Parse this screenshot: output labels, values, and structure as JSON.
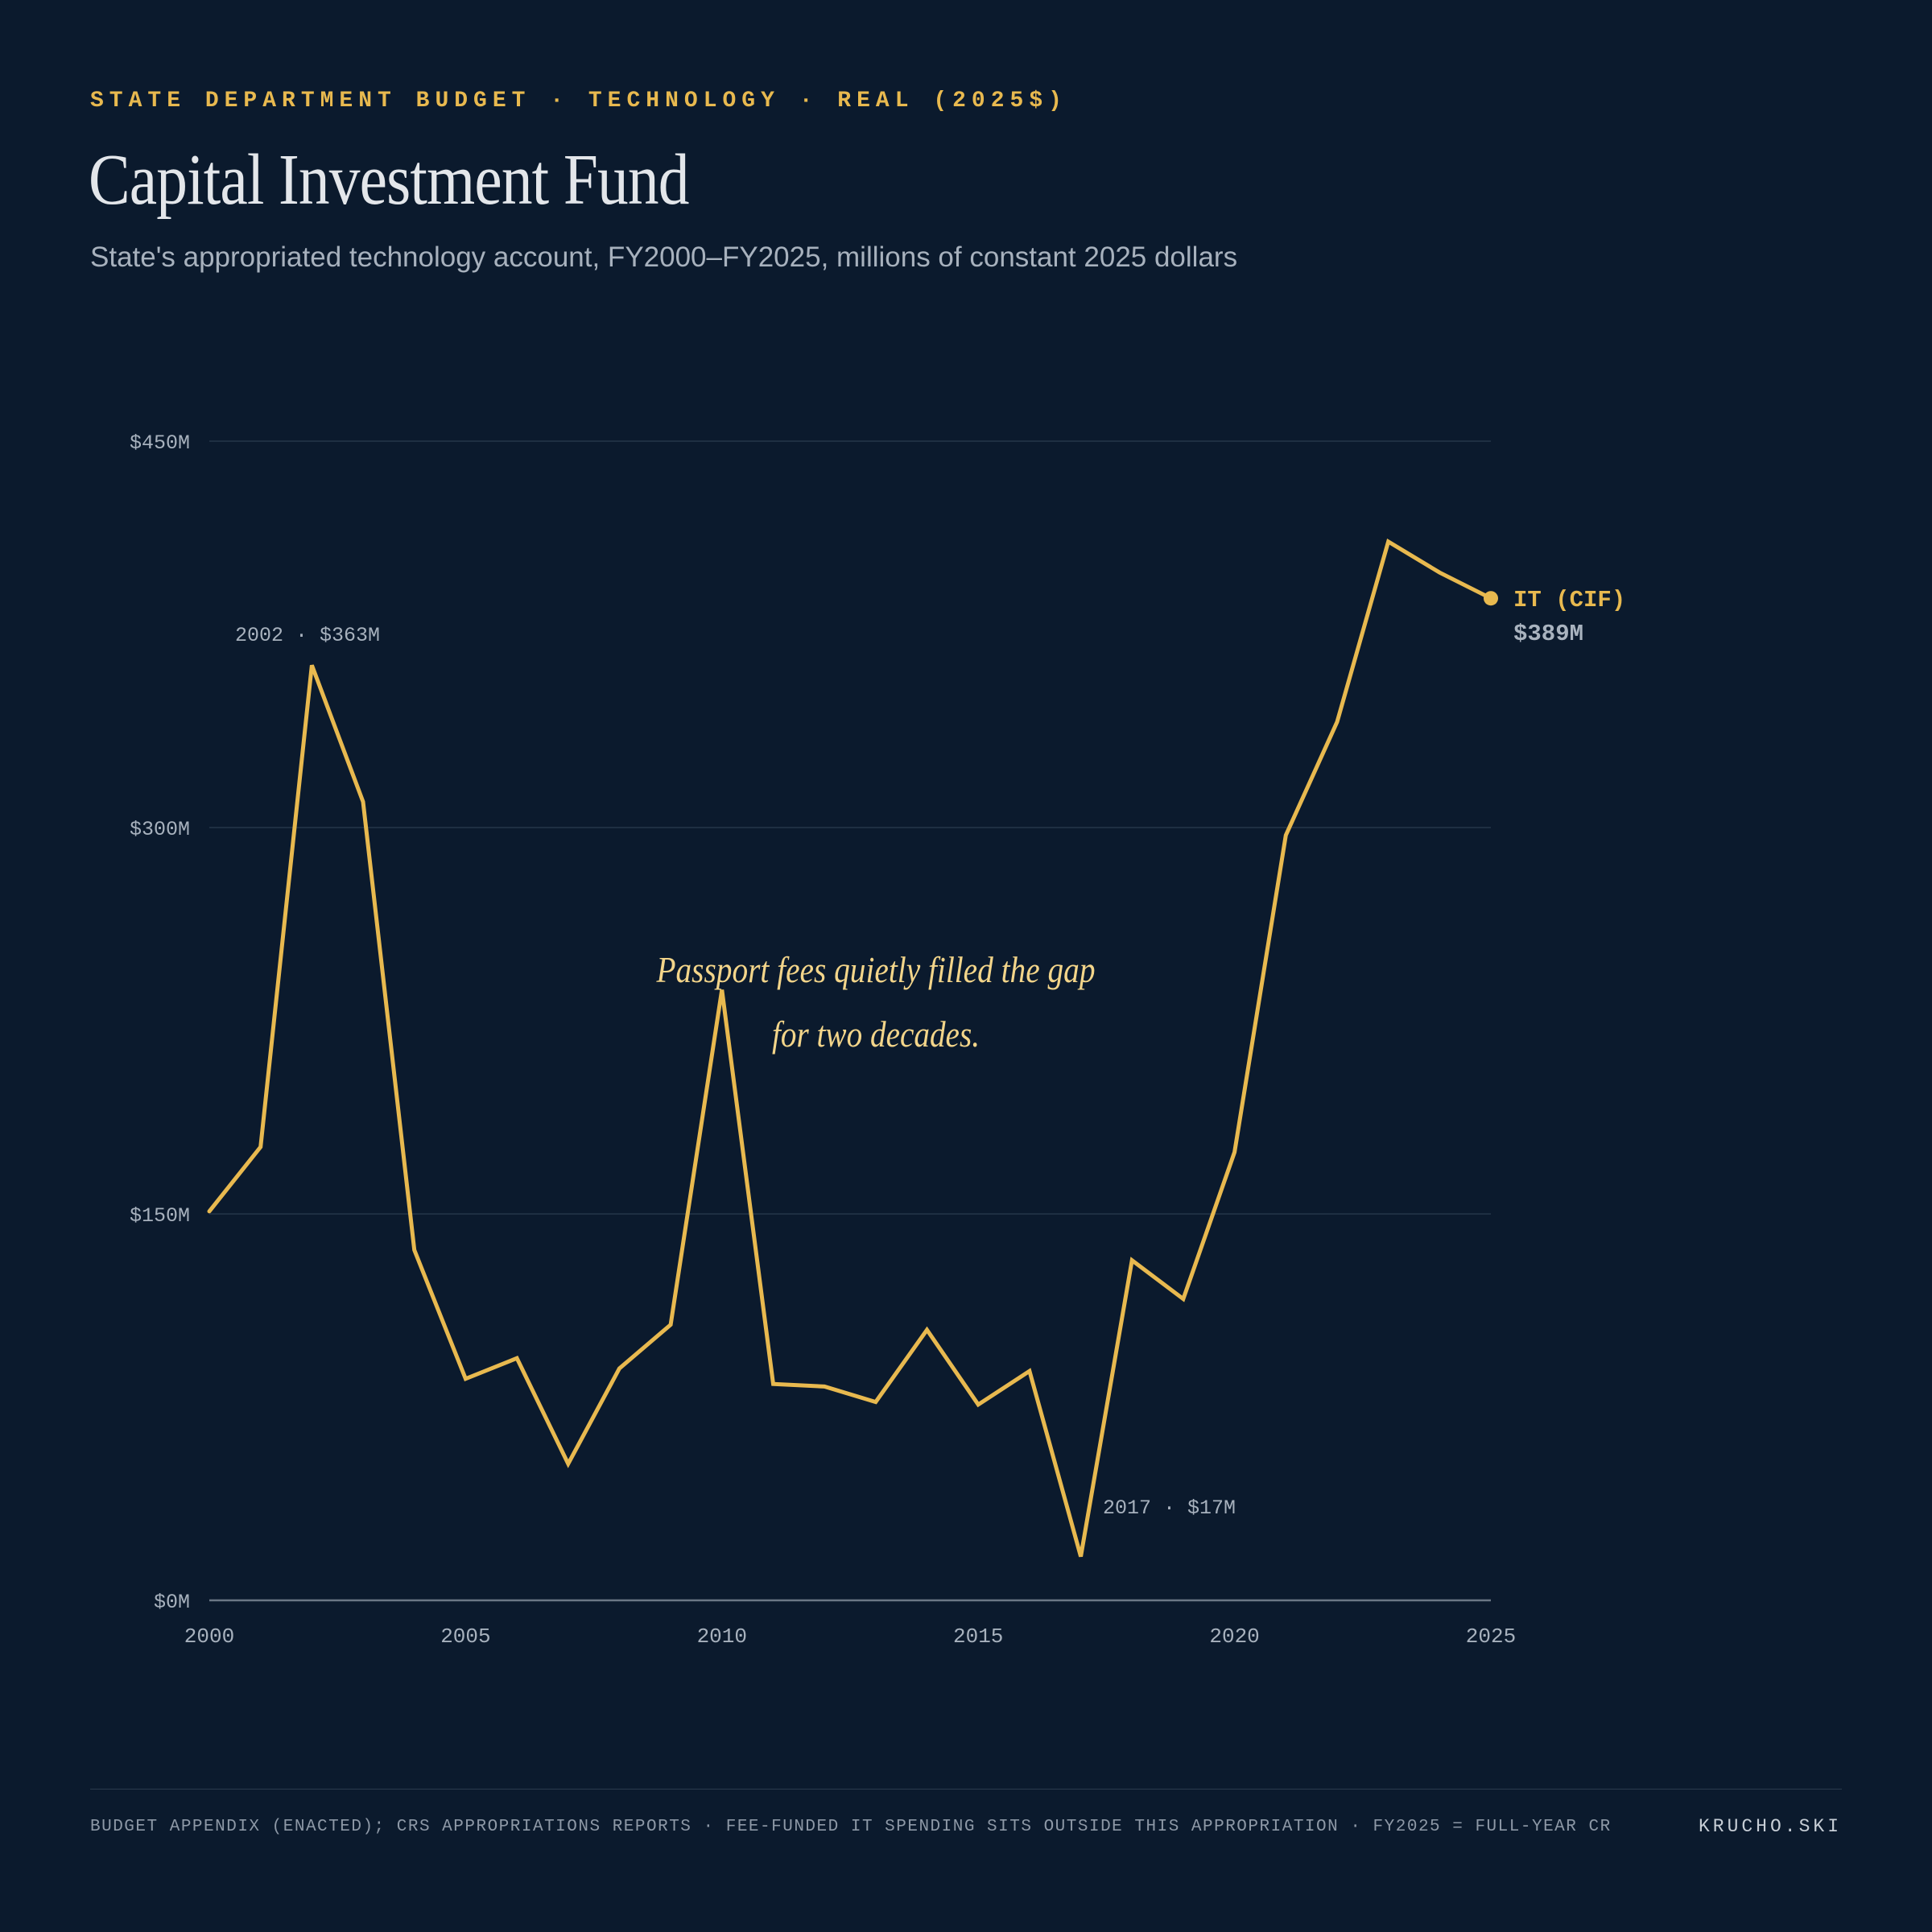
{
  "header": {
    "kicker": "STATE DEPARTMENT BUDGET · TECHNOLOGY · REAL (2025$)",
    "title": "Capital Investment Fund",
    "subtitle": "State's appropriated technology account, FY2000–FY2025, millions of constant 2025 dollars"
  },
  "colors": {
    "background": "#0b1a2d",
    "series": "#e8b94f",
    "annotation": "#f3d58a",
    "grid": "#24364a",
    "axis_text": "#a7b1bd"
  },
  "chart_data": {
    "type": "line",
    "x": [
      2000,
      2001,
      2002,
      2003,
      2004,
      2005,
      2006,
      2007,
      2008,
      2009,
      2010,
      2011,
      2012,
      2013,
      2014,
      2015,
      2016,
      2017,
      2018,
      2019,
      2020,
      2021,
      2022,
      2023,
      2024,
      2025
    ],
    "series": [
      {
        "name": "IT (CIF)",
        "values": [
          151,
          176,
          363,
          310,
          136,
          86,
          94,
          53,
          90,
          107,
          237,
          84,
          83,
          77,
          105,
          76,
          89,
          17,
          132,
          117,
          174,
          297,
          341,
          411,
          399,
          389
        ]
      }
    ],
    "xlim": [
      2000,
      2025
    ],
    "ylim": [
      0,
      450
    ],
    "x_ticks": [
      2000,
      2005,
      2010,
      2015,
      2020,
      2025
    ],
    "y_ticks": [
      0,
      150,
      300,
      450
    ],
    "y_tick_labels": [
      "$0M",
      "$150M",
      "$300M",
      "$450M"
    ],
    "grid": true,
    "end_label": {
      "name": "IT (CIF)",
      "value": "$389M"
    },
    "point_labels": [
      {
        "x": 2002,
        "text": "2002 · $363M"
      },
      {
        "x": 2017,
        "text": "2017 · $17M"
      }
    ],
    "annotation": {
      "lines": [
        "Passport fees quietly filled the gap",
        "for two decades."
      ]
    }
  },
  "footer": {
    "note": "BUDGET APPENDIX (ENACTED); CRS APPROPRIATIONS REPORTS · FEE-FUNDED IT SPENDING SITS OUTSIDE THIS APPROPRIATION · FY2025 = FULL-YEAR CR",
    "brand": "KRUCHO.SKI"
  }
}
